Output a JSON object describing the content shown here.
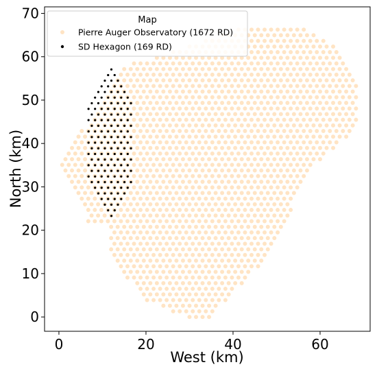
{
  "chart_data": {
    "type": "scatter",
    "title": "",
    "xlabel": "West (km)",
    "ylabel": "North (km)",
    "xlim": [
      -3.3,
      71.5
    ],
    "ylim": [
      -3.3,
      71.5
    ],
    "x_ticks": [
      0,
      20,
      40,
      60
    ],
    "y_ticks": [
      0,
      10,
      20,
      30,
      40,
      50,
      60,
      70
    ],
    "grid": false,
    "legend": {
      "title": "Map",
      "placement": "top-left"
    },
    "series": [
      {
        "name": "Pierre Auger Observatory (1672 RD)",
        "color": "#ffe4c4",
        "marker": "circle",
        "pattern": "triangular-lattice",
        "spacing_km": 1.5,
        "footprint_vertices": [
          [
            0,
            35
          ],
          [
            7,
            21.5
          ],
          [
            12,
            21.5
          ],
          [
            12,
            13
          ],
          [
            20,
            4
          ],
          [
            29,
            0
          ],
          [
            35,
            0
          ],
          [
            48,
            14
          ],
          [
            52,
            22
          ],
          [
            55,
            28
          ],
          [
            59,
            35
          ],
          [
            65,
            40
          ],
          [
            68.5,
            44
          ],
          [
            69,
            52
          ],
          [
            64,
            62
          ],
          [
            57,
            66
          ],
          [
            54,
            67.5
          ],
          [
            45,
            67.5
          ],
          [
            22,
            60
          ],
          [
            15,
            58
          ],
          [
            2,
            38
          ]
        ]
      },
      {
        "name": "SD Hexagon (169 RD)",
        "color": "#000000",
        "marker": "circle",
        "pattern": "triangular-lattice",
        "spacing_km": 1.5,
        "footprint_vertices": [
          [
            12.2,
            22
          ],
          [
            17.2,
            30
          ],
          [
            17.2,
            50
          ],
          [
            12.2,
            58.5
          ],
          [
            6.8,
            50
          ],
          [
            6.8,
            30
          ]
        ]
      }
    ]
  }
}
